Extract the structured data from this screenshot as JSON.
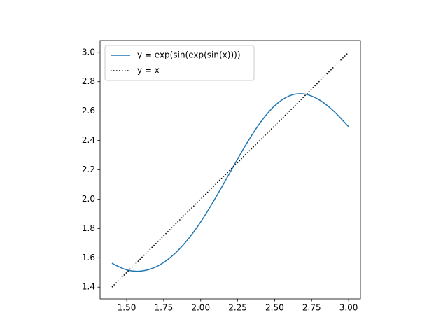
{
  "chart_data": {
    "type": "line",
    "series": [
      {
        "name": "y = exp(sin(exp(sin(x))))",
        "color": "#1f77b4",
        "style": "solid",
        "x": [
          1.4,
          1.5,
          1.6,
          1.7,
          1.8,
          1.9,
          2.0,
          2.1,
          2.2,
          2.3,
          2.4,
          2.5,
          2.6,
          2.7,
          2.8,
          2.9,
          3.0
        ],
        "values": [
          1.5625,
          1.5174,
          1.5097,
          1.5392,
          1.6059,
          1.7087,
          1.8445,
          2.0081,
          2.1845,
          2.3613,
          2.5176,
          2.6361,
          2.7037,
          2.7163,
          2.6773,
          2.5993,
          2.4928
        ]
      },
      {
        "name": "y = x",
        "color": "#000000",
        "style": "dotted",
        "x": [
          1.4,
          3.0
        ],
        "values": [
          1.4,
          3.0
        ]
      }
    ],
    "xlim": [
      1.32,
      3.08
    ],
    "ylim": [
      1.32,
      3.08
    ],
    "xticks": [
      {
        "value": 1.5,
        "label": "1.50"
      },
      {
        "value": 1.75,
        "label": "1.75"
      },
      {
        "value": 2,
        "label": "2.00"
      },
      {
        "value": 2.25,
        "label": "2.25"
      },
      {
        "value": 2.5,
        "label": "2.50"
      },
      {
        "value": 2.75,
        "label": "2.75"
      },
      {
        "value": 3,
        "label": "3.00"
      }
    ],
    "yticks": [
      1.4,
      1.6,
      1.8,
      {
        "value": 2,
        "label": "2.0"
      },
      2.2,
      2.4,
      2.6,
      2.8,
      {
        "value": 3,
        "label": "3.0"
      }
    ],
    "grid": false,
    "legend": "upper left"
  }
}
